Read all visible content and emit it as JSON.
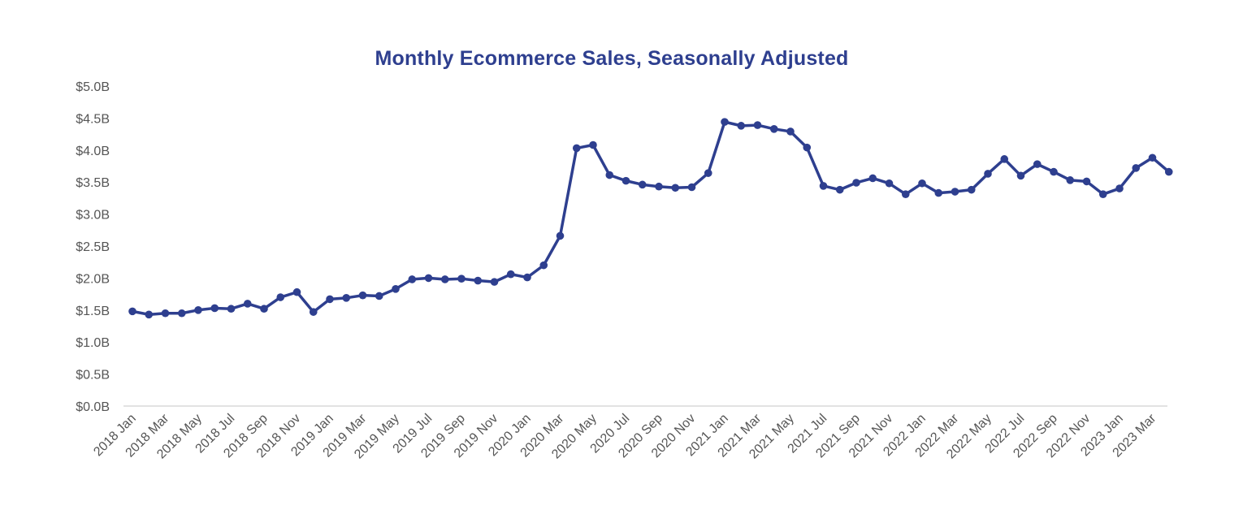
{
  "chart_data": {
    "type": "line",
    "title": "Monthly Ecommerce Sales, Seasonally Adjusted",
    "xlabel": "",
    "ylabel": "",
    "ylim": [
      0,
      5.0
    ],
    "yticks": [
      {
        "value": 0.0,
        "label": "$0.0B"
      },
      {
        "value": 0.5,
        "label": "$0.5B"
      },
      {
        "value": 1.0,
        "label": "$1.0B"
      },
      {
        "value": 1.5,
        "label": "$1.5B"
      },
      {
        "value": 2.0,
        "label": "$2.0B"
      },
      {
        "value": 2.5,
        "label": "$2.5B"
      },
      {
        "value": 3.0,
        "label": "$3.0B"
      },
      {
        "value": 3.5,
        "label": "$3.5B"
      },
      {
        "value": 4.0,
        "label": "$4.0B"
      },
      {
        "value": 4.5,
        "label": "$4.5B"
      },
      {
        "value": 5.0,
        "label": "$5.0B"
      }
    ],
    "x_tick_labels": [
      "2018 Jan",
      "2018 Mar",
      "2018 May",
      "2018 Jul",
      "2018 Sep",
      "2018 Nov",
      "2019 Jan",
      "2019 Mar",
      "2019 May",
      "2019 Jul",
      "2019 Sep",
      "2019 Nov",
      "2020 Jan",
      "2020 Mar",
      "2020 May",
      "2020 Jul",
      "2020 Sep",
      "2020 Nov",
      "2021 Jan",
      "2021 Mar",
      "2021 May",
      "2021 Jul",
      "2021 Sep",
      "2021 Nov",
      "2022 Jan",
      "2022 Mar",
      "2022 May",
      "2022 Jul",
      "2022 Sep",
      "2022 Nov",
      "2023 Jan",
      "2023 Mar"
    ],
    "categories": [
      "2018 Jan",
      "2018 Feb",
      "2018 Mar",
      "2018 Apr",
      "2018 May",
      "2018 Jun",
      "2018 Jul",
      "2018 Aug",
      "2018 Sep",
      "2018 Oct",
      "2018 Nov",
      "2018 Dec",
      "2019 Jan",
      "2019 Feb",
      "2019 Mar",
      "2019 Apr",
      "2019 May",
      "2019 Jun",
      "2019 Jul",
      "2019 Aug",
      "2019 Sep",
      "2019 Oct",
      "2019 Nov",
      "2019 Dec",
      "2020 Jan",
      "2020 Feb",
      "2020 Mar",
      "2020 Apr",
      "2020 May",
      "2020 Jun",
      "2020 Jul",
      "2020 Aug",
      "2020 Sep",
      "2020 Oct",
      "2020 Nov",
      "2020 Dec",
      "2021 Jan",
      "2021 Feb",
      "2021 Mar",
      "2021 Apr",
      "2021 May",
      "2021 Jun",
      "2021 Jul",
      "2021 Aug",
      "2021 Sep",
      "2021 Oct",
      "2021 Nov",
      "2021 Dec",
      "2022 Jan",
      "2022 Feb",
      "2022 Mar",
      "2022 Apr",
      "2022 May",
      "2022 Jun",
      "2022 Jul",
      "2022 Aug",
      "2022 Sep",
      "2022 Oct",
      "2022 Nov",
      "2022 Dec",
      "2023 Jan",
      "2023 Feb",
      "2023 Mar",
      "2023 Apr"
    ],
    "series": [
      {
        "values": [
          1.48,
          1.43,
          1.45,
          1.45,
          1.5,
          1.53,
          1.52,
          1.6,
          1.52,
          1.7,
          1.78,
          1.47,
          1.67,
          1.69,
          1.73,
          1.72,
          1.83,
          1.98,
          2.0,
          1.98,
          1.99,
          1.96,
          1.94,
          2.06,
          2.01,
          2.2,
          2.66,
          4.03,
          4.08,
          3.61,
          3.52,
          3.46,
          3.43,
          3.41,
          3.42,
          3.64,
          4.44,
          4.38,
          4.39,
          4.33,
          4.29,
          4.04,
          3.44,
          3.38,
          3.49,
          3.56,
          3.48,
          3.31,
          3.48,
          3.33,
          3.35,
          3.38,
          3.63,
          3.86,
          3.6,
          3.78,
          3.66,
          3.53,
          3.51,
          3.31,
          3.4,
          3.72,
          3.88,
          3.66
        ]
      }
    ],
    "line_color": "#2e3f8f",
    "axis_color": "#d9d9d9",
    "grid": false,
    "legend": "none"
  }
}
